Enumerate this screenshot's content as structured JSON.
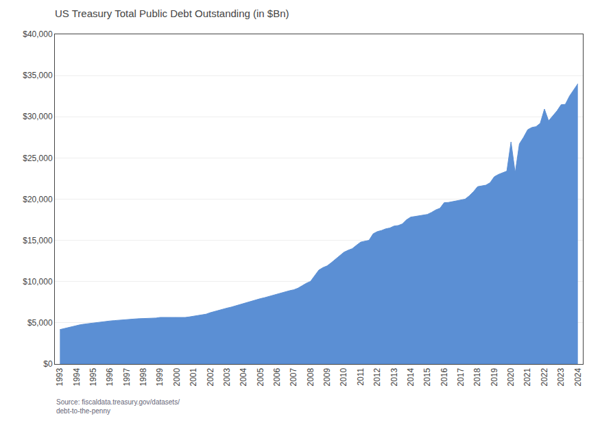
{
  "chart_data": {
    "type": "area",
    "title": "US Treasury Total Public Debt Outstanding (in $Bn)",
    "annotation": "Source: fiscaldata.treasury.gov/datasets/\ndebt-to-the-penny",
    "color": "#5b8fd4",
    "grid": true,
    "x": [
      1993.0,
      1993.25,
      1993.5,
      1993.75,
      1994.0,
      1994.25,
      1994.5,
      1994.75,
      1995.0,
      1995.25,
      1995.5,
      1995.75,
      1996.0,
      1996.25,
      1996.5,
      1996.75,
      1997.0,
      1997.25,
      1997.5,
      1997.75,
      1998.0,
      1998.25,
      1998.5,
      1998.75,
      1999.0,
      1999.25,
      1999.5,
      1999.75,
      2000.0,
      2000.25,
      2000.5,
      2000.75,
      2001.0,
      2001.25,
      2001.5,
      2001.75,
      2002.0,
      2002.25,
      2002.5,
      2002.75,
      2003.0,
      2003.25,
      2003.5,
      2003.75,
      2004.0,
      2004.25,
      2004.5,
      2004.75,
      2005.0,
      2005.25,
      2005.5,
      2005.75,
      2006.0,
      2006.25,
      2006.5,
      2006.75,
      2007.0,
      2007.25,
      2007.5,
      2007.75,
      2008.0,
      2008.25,
      2008.5,
      2008.75,
      2009.0,
      2009.25,
      2009.5,
      2009.75,
      2010.0,
      2010.25,
      2010.5,
      2010.75,
      2011.0,
      2011.25,
      2011.5,
      2011.75,
      2012.0,
      2012.25,
      2012.5,
      2012.75,
      2013.0,
      2013.25,
      2013.5,
      2013.75,
      2014.0,
      2014.25,
      2014.5,
      2014.75,
      2015.0,
      2015.25,
      2015.5,
      2015.75,
      2016.0,
      2016.25,
      2016.5,
      2016.75,
      2017.0,
      2017.25,
      2017.5,
      2017.75,
      2018.0,
      2018.25,
      2018.5,
      2018.75,
      2019.0,
      2019.25,
      2019.5,
      2019.75,
      2020.0,
      2020.25,
      2020.5,
      2020.75,
      2021.0,
      2021.25,
      2021.5,
      2021.75,
      2022.0,
      2022.25,
      2022.5,
      2022.75,
      2023.0,
      2023.25,
      2023.5,
      2023.75,
      2024.0
    ],
    "values": [
      4177,
      4300,
      4411,
      4550,
      4693,
      4780,
      4850,
      4920,
      4974,
      5050,
      5130,
      5190,
      5225,
      5270,
      5320,
      5380,
      5413,
      5450,
      5470,
      5500,
      5526,
      5530,
      5540,
      5580,
      5656,
      5660,
      5665,
      5670,
      5674,
      5660,
      5650,
      5720,
      5807,
      5870,
      5950,
      6050,
      6228,
      6380,
      6500,
      6640,
      6783,
      6900,
      7050,
      7200,
      7379,
      7500,
      7650,
      7800,
      7933,
      8050,
      8200,
      8350,
      8507,
      8650,
      8800,
      8900,
      9008,
      9200,
      9500,
      9800,
      10025,
      10700,
      11400,
      11700,
      11910,
      12300,
      12700,
      13100,
      13562,
      13800,
      14000,
      14400,
      14790,
      14900,
      15000,
      15800,
      16066,
      16200,
      16400,
      16500,
      16738,
      16800,
      17000,
      17500,
      17824,
      17900,
      18000,
      18100,
      18151,
      18400,
      18700,
      18900,
      19574,
      19600,
      19700,
      19800,
      19846,
      20000,
      20400,
      20900,
      21516,
      21600,
      21700,
      22000,
      22719,
      23000,
      23200,
      23400,
      26945,
      23200,
      26700,
      27500,
      28428,
      28700,
      28800,
      29200,
      30929,
      29500,
      30100,
      30700,
      31460,
      31500,
      32500,
      33200,
      34001
    ],
    "xlim": [
      1992.7,
      2024.3
    ],
    "xticks": [
      1993,
      1994,
      1995,
      1996,
      1997,
      1998,
      1999,
      2000,
      2001,
      2002,
      2003,
      2004,
      2005,
      2006,
      2007,
      2008,
      2009,
      2010,
      2011,
      2012,
      2013,
      2014,
      2015,
      2016,
      2017,
      2018,
      2019,
      2020,
      2021,
      2022,
      2023,
      2024
    ],
    "ylim": [
      0,
      40000
    ],
    "yticks": [
      {
        "value": 0,
        "label": "$0"
      },
      {
        "value": 5000,
        "label": "$5,000"
      },
      {
        "value": 10000,
        "label": "$10,000"
      },
      {
        "value": 15000,
        "label": "$15,000"
      },
      {
        "value": 20000,
        "label": "$20,000"
      },
      {
        "value": 25000,
        "label": "$25,000"
      },
      {
        "value": 30000,
        "label": "$30,000"
      },
      {
        "value": 35000,
        "label": "$35,000"
      },
      {
        "value": 40000,
        "label": "$40,000"
      }
    ]
  }
}
